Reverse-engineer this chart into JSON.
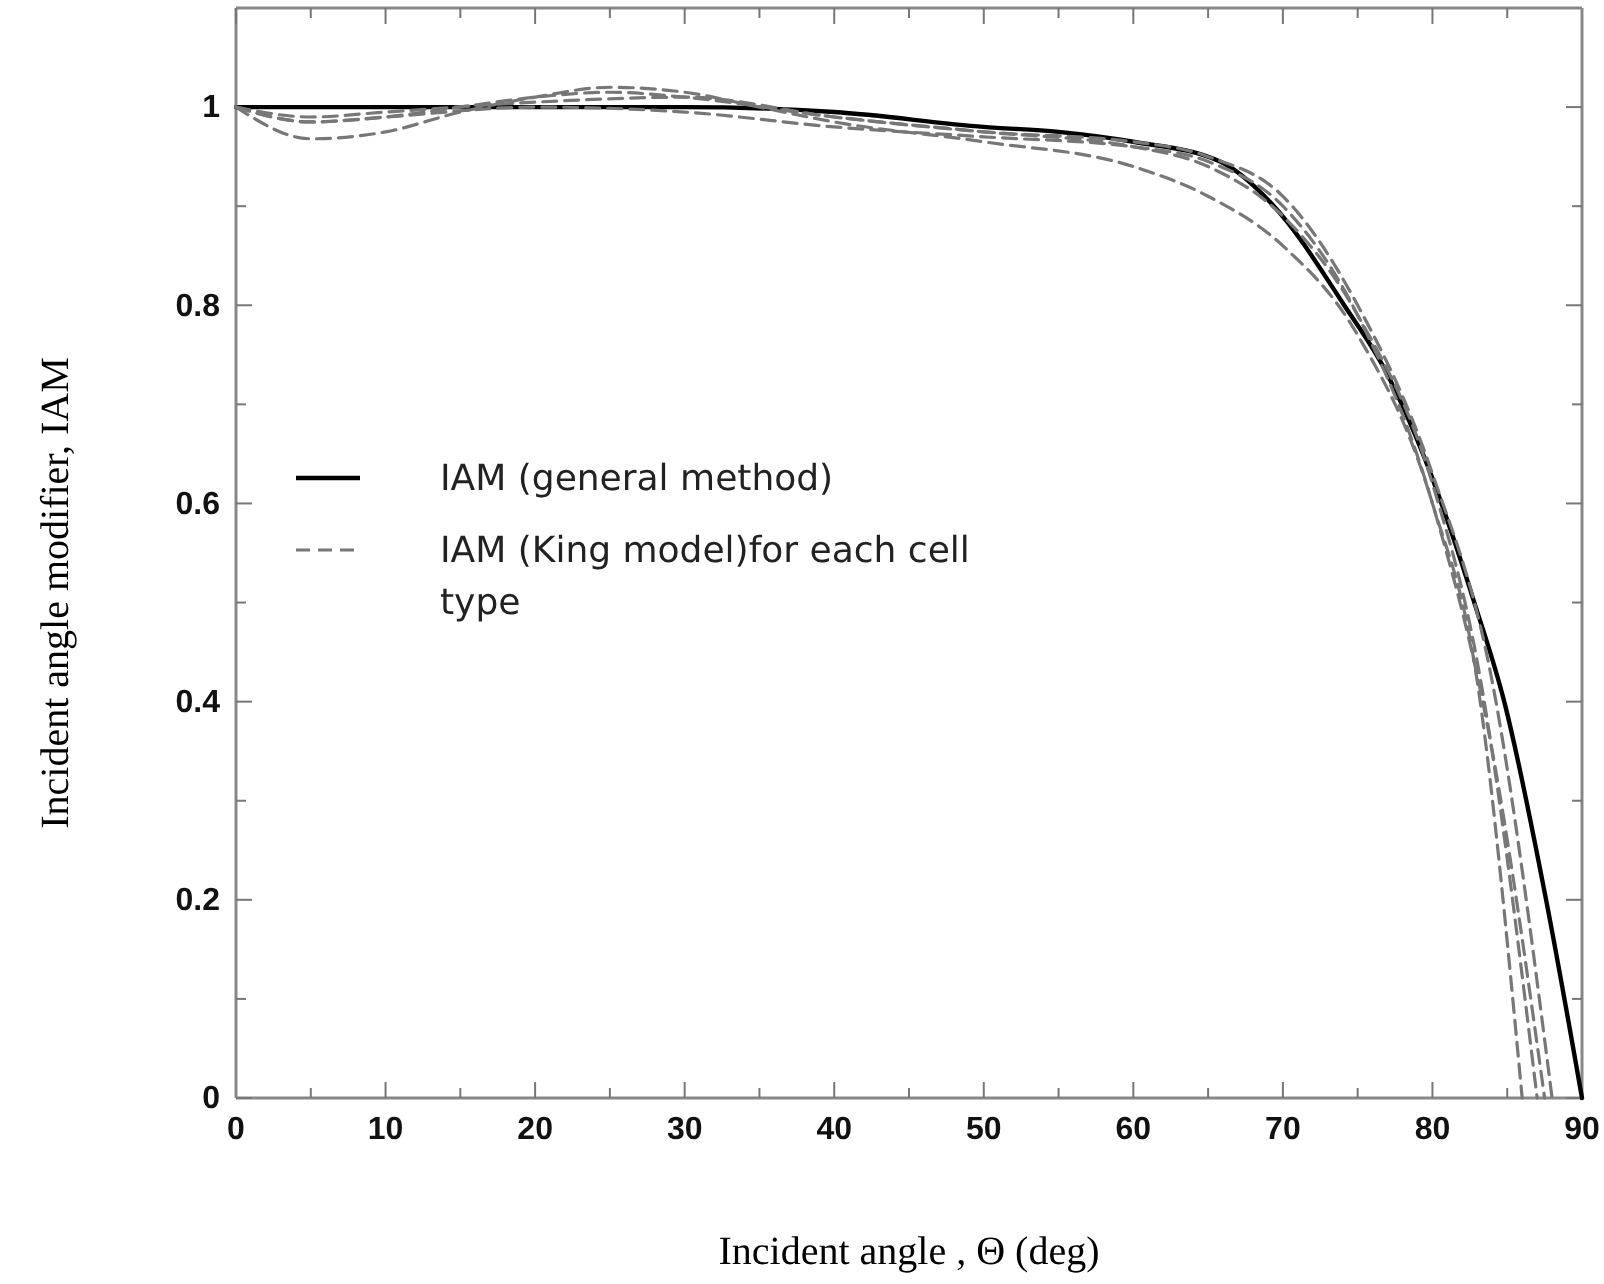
{
  "chart_data": {
    "type": "line",
    "xlabel": "Incident angle , Θ (deg)",
    "ylabel": "Incident angle modifier, IAM",
    "xlim": [
      0,
      90
    ],
    "ylim": [
      0,
      1.1
    ],
    "xticks": [
      0,
      {
        "value": 5,
        "label": null
      },
      10,
      {
        "value": 15,
        "label": null
      },
      20,
      {
        "value": 25,
        "label": null
      },
      30,
      {
        "value": 35,
        "label": null
      },
      40,
      {
        "value": 45,
        "label": null
      },
      50,
      {
        "value": 55,
        "label": null
      },
      60,
      {
        "value": 65,
        "label": null
      },
      70,
      {
        "value": 75,
        "label": null
      },
      80,
      {
        "value": 85,
        "label": null
      },
      90
    ],
    "yticks": [
      0,
      {
        "value": 0.1,
        "label": null
      },
      0.2,
      {
        "value": 0.3,
        "label": null
      },
      0.4,
      {
        "value": 0.5,
        "label": null
      },
      0.6,
      {
        "value": 0.7,
        "label": null
      },
      0.8,
      {
        "value": 0.9,
        "label": null
      },
      1
    ],
    "grid": false,
    "legend": "left",
    "marker": "none",
    "series": [
      {
        "name": "IAM (general method)",
        "color": "#000000",
        "line_style": "solid",
        "x": [
          0,
          10,
          20,
          30,
          40,
          50,
          55,
          60,
          65.8,
          69.4,
          74.1,
          77,
          79.5,
          82.8,
          84.8,
          87.6,
          90
        ],
        "values": [
          1,
          1,
          1,
          1,
          0.995,
          0.98,
          0.975,
          0.965,
          0.945,
          0.9,
          0.8,
          0.73,
          0.645,
          0.5,
          0.4,
          0.2,
          0
        ]
      },
      {
        "name": "IAM (King model)for each cell type",
        "color": "#777777",
        "line_style": "dashed",
        "x": [
          0,
          5,
          10,
          15,
          20,
          25,
          30,
          35,
          40,
          50,
          60,
          65,
          70,
          75,
          80,
          83,
          86
        ],
        "values": [
          1,
          0.968,
          0.975,
          0.995,
          1.01,
          1.02,
          1.015,
          1,
          0.985,
          0.965,
          0.94,
          0.91,
          0.86,
          0.77,
          0.6,
          0.42,
          0
        ]
      },
      {
        "color": "#777777",
        "line_style": "dashed",
        "x": [
          0,
          5,
          10,
          15,
          20,
          25,
          30,
          40,
          50,
          60,
          65,
          70,
          75,
          80,
          83,
          87
        ],
        "values": [
          1,
          0.985,
          0.99,
          1,
          1.01,
          1.015,
          1.01,
          0.99,
          0.975,
          0.96,
          0.94,
          0.89,
          0.79,
          0.62,
          0.44,
          0
        ]
      },
      {
        "color": "#777777",
        "line_style": "dashed",
        "x": [
          0,
          5,
          10,
          20,
          30,
          40,
          50,
          60,
          65,
          70,
          75,
          80,
          84,
          88
        ],
        "values": [
          1,
          0.99,
          0.995,
          1.005,
          1.01,
          0.99,
          0.975,
          0.965,
          0.95,
          0.91,
          0.8,
          0.63,
          0.42,
          0
        ]
      },
      {
        "color": "#777777",
        "line_style": "dashed",
        "x": [
          0,
          5,
          10,
          20,
          30,
          40,
          50,
          60,
          65,
          70,
          75,
          80,
          84,
          87.5
        ],
        "values": [
          1,
          0.985,
          0.99,
          1,
          0.995,
          0.98,
          0.97,
          0.96,
          0.945,
          0.9,
          0.79,
          0.6,
          0.35,
          0
        ]
      }
    ]
  }
}
